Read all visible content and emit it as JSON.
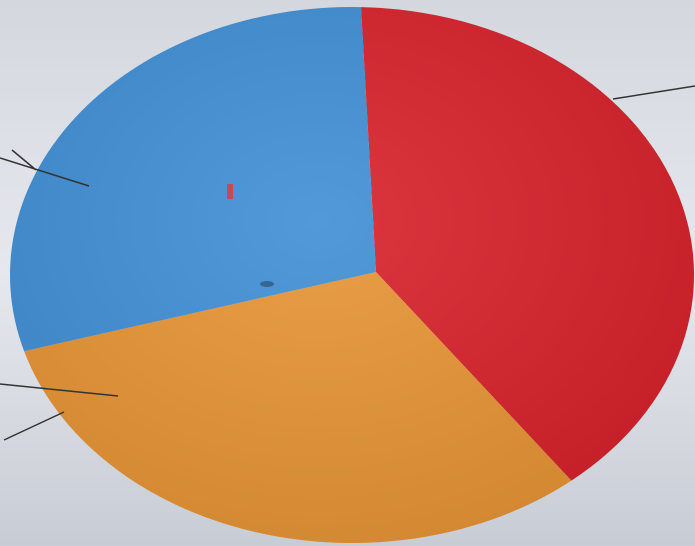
{
  "chart_data": {
    "type": "pie",
    "title": "",
    "categories": [
      "",
      "",
      ""
    ],
    "values": [
      38.5,
      31.5,
      30.0
    ],
    "colors": [
      "#d8202a",
      "#e79433",
      "#3e8ed4"
    ],
    "legend": "none",
    "start_angle_deg": -88.5,
    "leader_lines": true
  },
  "scene": {
    "background": "#c9ccd3",
    "page_color": "#e6e8ee"
  }
}
